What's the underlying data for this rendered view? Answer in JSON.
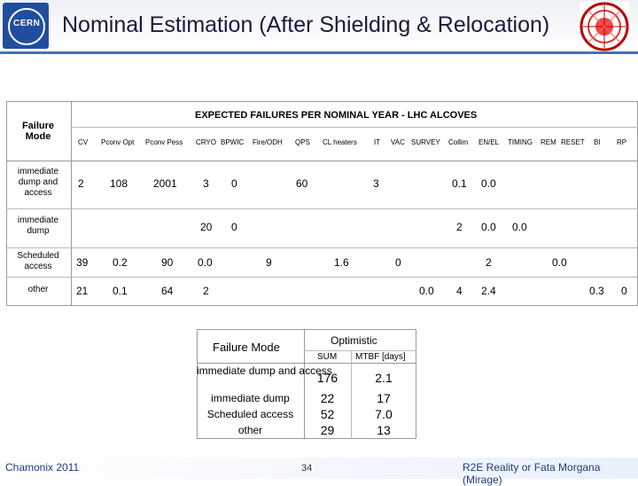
{
  "header": {
    "title": "Nominal Estimation (After Shielding & Relocation)",
    "logo_text": "CERN"
  },
  "table": {
    "failure_mode_label": "Failure Mode",
    "expected_label": "EXPECTED FAILURES PER NOMINAL YEAR  - LHC ALCOVES",
    "columns": [
      "CV",
      "Pconv Opt",
      "Pconv Pess",
      "CRYO",
      "BPWIC",
      "Fire/ODH",
      "QPS",
      "CL heaters",
      "IT",
      "VAC",
      "SURVEY",
      "Collim",
      "EN/EL",
      "TIMING",
      "REM",
      "RESET",
      "BI",
      "RP"
    ],
    "rows": [
      {
        "label": "immediate dump and access"
      },
      {
        "label": "immediate dump"
      },
      {
        "label": "Scheduled access"
      },
      {
        "label": "other"
      }
    ],
    "values": {
      "r0": [
        "2",
        "108",
        "2001",
        "3",
        "0",
        "60",
        "3",
        "0.1",
        "0.0"
      ],
      "r1": [
        "20",
        "0",
        "2",
        "0.0",
        "0.0"
      ],
      "r2": [
        "39",
        "0.2",
        "90",
        "0.0",
        "9",
        "1.6",
        "0",
        "2",
        "0.0"
      ],
      "r3": [
        "21",
        "0.1",
        "64",
        "2",
        "0.0",
        "4",
        "2.4",
        "0.3",
        "0"
      ]
    }
  },
  "summary": {
    "header_mode": "Failure Mode",
    "header_opt": "Optimistic",
    "sub_sum": "SUM",
    "sub_mtbf": "MTBF [days]",
    "rows": [
      {
        "label": "immediate dump and access",
        "sum": "176",
        "mtbf": "2.1"
      },
      {
        "label": "immediate dump",
        "sum": "22",
        "mtbf": "17"
      },
      {
        "label": "Scheduled access",
        "sum": "52",
        "mtbf": "7.0"
      },
      {
        "label": "other",
        "sum": "29",
        "mtbf": "13"
      }
    ]
  },
  "footer": {
    "left": "Chamonix 2011",
    "page": "34",
    "right": "R2E Reality or Fata Morgana (Mirage)"
  },
  "colors": {
    "accent": "#1f4e9e",
    "line": "#4a6fb5",
    "shade": "#d9d9d9"
  }
}
